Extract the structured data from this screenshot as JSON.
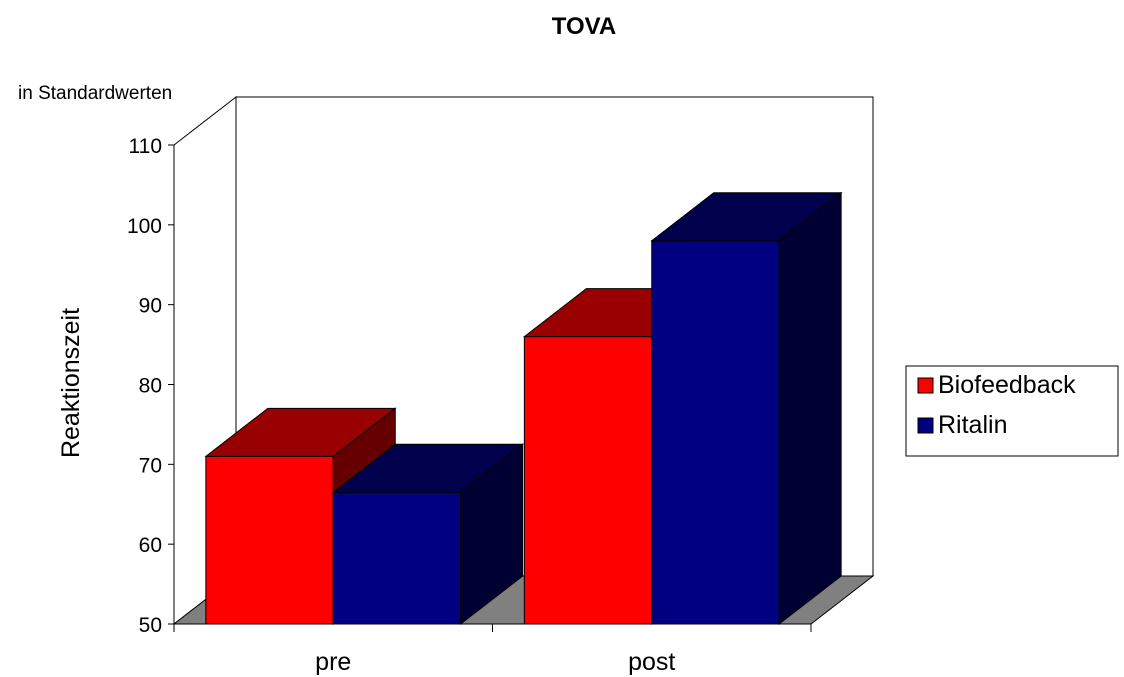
{
  "chart_data": {
    "type": "bar",
    "title": "TOVA",
    "subtitle": "in Standardwerten",
    "ylabel": "Reaktionszeit",
    "xlabel": "",
    "categories": [
      "pre",
      "post"
    ],
    "ylim": [
      50,
      110
    ],
    "yticks": [
      "50",
      "60",
      "70",
      "80",
      "90",
      "100",
      "110"
    ],
    "series": [
      {
        "name": "Biofeedback",
        "values": [
          71,
          86
        ],
        "color": "#ff0000"
      },
      {
        "name": "Ritalin",
        "values": [
          66.5,
          98
        ],
        "color": "#000080"
      }
    ],
    "legend": "right",
    "style": "3d"
  }
}
